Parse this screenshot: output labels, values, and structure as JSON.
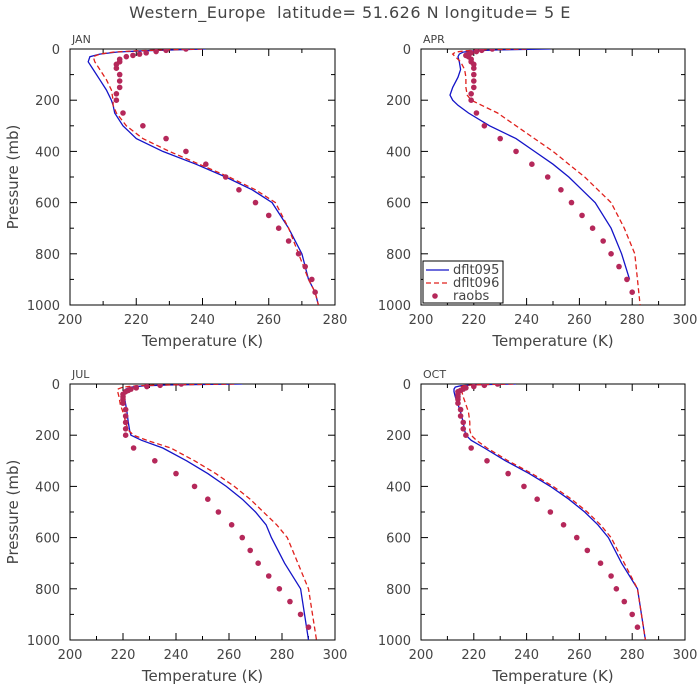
{
  "title": "Western_Europe  latitude= 51.626 N longitude= 5 E",
  "colors": {
    "dflt095": "#1414c8",
    "dflt096": "#e0201c",
    "raobs": "#b5285a"
  },
  "chart_data": [
    {
      "type": "line",
      "panel_label": "JAN",
      "xlabel": "Temperature (K)",
      "ylabel": "Pressure (mb)",
      "xlim": [
        200,
        280
      ],
      "ylim": [
        1000,
        0
      ],
      "xticks": [
        "200",
        "220",
        "240",
        "260",
        "280"
      ],
      "yticks": [
        "0",
        "200",
        "400",
        "600",
        "800",
        "1000"
      ],
      "series": [
        {
          "name": "dflt095",
          "style": "solid",
          "x": [
            241,
            232,
            222,
            214,
            209,
            206,
            205.5,
            207,
            209,
            211,
            212.5,
            213,
            213.5,
            216,
            220,
            228,
            238,
            247,
            255,
            261,
            266,
            270,
            272,
            274,
            275
          ],
          "y": [
            0,
            3,
            7,
            12,
            20,
            30,
            50,
            80,
            120,
            160,
            200,
            220,
            250,
            300,
            350,
            400,
            450,
            500,
            550,
            600,
            700,
            800,
            900,
            950,
            1000
          ]
        },
        {
          "name": "dflt096",
          "style": "dashed",
          "x": [
            240,
            230,
            220,
            213,
            209,
            207,
            207.5,
            209,
            211,
            212.5,
            213,
            213,
            214,
            217,
            222,
            230,
            239,
            248,
            256,
            262,
            266,
            269,
            272,
            274,
            275
          ],
          "y": [
            0,
            3,
            7,
            12,
            20,
            30,
            50,
            80,
            120,
            160,
            200,
            220,
            250,
            300,
            350,
            400,
            450,
            500,
            550,
            600,
            700,
            800,
            900,
            950,
            1000
          ]
        }
      ],
      "raobs": {
        "x": [
          235,
          229,
          226,
          223,
          221,
          219,
          217,
          215,
          215,
          214,
          214,
          215,
          215,
          215,
          214,
          214,
          216,
          222,
          229,
          235,
          241,
          247,
          251,
          256,
          260,
          263,
          266,
          269,
          271,
          273,
          274
        ],
        "y": [
          0,
          5,
          10,
          15,
          20,
          25,
          30,
          40,
          50,
          60,
          75,
          100,
          125,
          150,
          175,
          200,
          250,
          300,
          350,
          400,
          450,
          500,
          550,
          600,
          650,
          700,
          750,
          800,
          850,
          900,
          950
        ]
      },
      "legend": false
    },
    {
      "type": "line",
      "panel_label": "APR",
      "xlabel": "Temperature (K)",
      "ylabel": "",
      "xlim": [
        200,
        300
      ],
      "ylim": [
        1000,
        0
      ],
      "xticks": [
        "200",
        "220",
        "240",
        "260",
        "280",
        "300"
      ],
      "yticks": [
        "0",
        "200",
        "400",
        "600",
        "800",
        "1000"
      ],
      "series": [
        {
          "name": "dflt095",
          "style": "solid",
          "x": [
            249,
            238,
            228,
            220,
            216,
            214.5,
            214,
            214.5,
            215,
            214,
            212,
            211,
            212,
            214,
            218,
            226,
            236,
            243,
            250,
            256,
            261,
            266,
            272,
            276,
            279
          ],
          "y": [
            0,
            2,
            4,
            7,
            12,
            20,
            30,
            50,
            80,
            110,
            150,
            180,
            200,
            220,
            250,
            300,
            350,
            400,
            450,
            500,
            550,
            600,
            700,
            800,
            900
          ]
        },
        {
          "name": "dflt096",
          "style": "dashed",
          "x": [
            240,
            230,
            222,
            217,
            213,
            212,
            213,
            215,
            216.5,
            217,
            217,
            217.5,
            219,
            223,
            229,
            236,
            243,
            250,
            256,
            262,
            267,
            272,
            277,
            281,
            283
          ],
          "y": [
            0,
            2,
            4,
            7,
            12,
            20,
            30,
            50,
            80,
            110,
            150,
            180,
            200,
            220,
            250,
            300,
            350,
            400,
            450,
            500,
            550,
            600,
            700,
            800,
            1000
          ]
        }
      ],
      "raobs": {
        "x": [
          227,
          223,
          221,
          219,
          218,
          217,
          218,
          219,
          219,
          220,
          220,
          220,
          220,
          220,
          219,
          219,
          221,
          224,
          230,
          236,
          242,
          248,
          253,
          257,
          261,
          265,
          269,
          272,
          275,
          278,
          280
        ],
        "y": [
          0,
          5,
          10,
          15,
          20,
          25,
          30,
          40,
          50,
          60,
          75,
          100,
          125,
          150,
          175,
          200,
          250,
          300,
          350,
          400,
          450,
          500,
          550,
          600,
          650,
          700,
          750,
          800,
          850,
          900,
          950
        ]
      },
      "legend": true,
      "legend_position": "bottom-left",
      "legend_entries": [
        "dflt095",
        "dflt096",
        "raobs"
      ]
    },
    {
      "type": "line",
      "panel_label": "JUL",
      "xlabel": "Temperature (K)",
      "ylabel": "Pressure (mb)",
      "xlim": [
        200,
        300
      ],
      "ylim": [
        1000,
        0
      ],
      "xticks": [
        "200",
        "220",
        "240",
        "260",
        "280",
        "300"
      ],
      "yticks": [
        "0",
        "200",
        "400",
        "600",
        "800",
        "1000"
      ],
      "series": [
        {
          "name": "dflt095",
          "style": "solid",
          "x": [
            265,
            250,
            237,
            228,
            223,
            221,
            220.5,
            220.5,
            221,
            221.5,
            222,
            222.5,
            223,
            227,
            235,
            244,
            252,
            259,
            265,
            270,
            274,
            276,
            281,
            287,
            290
          ],
          "y": [
            0,
            2,
            4,
            7,
            12,
            20,
            30,
            50,
            80,
            110,
            150,
            180,
            200,
            220,
            250,
            300,
            350,
            400,
            450,
            500,
            550,
            600,
            700,
            800,
            1000
          ]
        },
        {
          "name": "dflt096",
          "style": "dashed",
          "x": [
            262,
            247,
            234,
            225,
            220,
            218,
            218,
            218.5,
            219,
            220,
            221,
            222,
            224,
            229,
            238,
            247,
            255,
            262,
            268,
            273,
            278,
            282,
            286,
            290,
            293
          ],
          "y": [
            0,
            2,
            4,
            7,
            12,
            20,
            30,
            50,
            80,
            110,
            150,
            180,
            200,
            220,
            250,
            300,
            350,
            400,
            450,
            500,
            550,
            600,
            700,
            800,
            1000
          ]
        }
      ],
      "raobs": {
        "x": [
          242,
          234,
          229,
          225,
          223,
          222,
          221,
          220,
          220,
          220,
          220,
          221,
          221,
          221,
          221,
          221,
          224,
          232,
          240,
          247,
          252,
          256,
          261,
          265,
          268,
          271,
          275,
          279,
          283,
          287,
          290
        ],
        "y": [
          0,
          5,
          10,
          15,
          20,
          25,
          30,
          40,
          50,
          60,
          75,
          100,
          125,
          150,
          175,
          200,
          250,
          300,
          350,
          400,
          450,
          500,
          550,
          600,
          650,
          700,
          750,
          800,
          850,
          900,
          950
        ]
      },
      "legend": false
    },
    {
      "type": "line",
      "panel_label": "OCT",
      "xlabel": "Temperature (K)",
      "ylabel": "",
      "xlim": [
        200,
        300
      ],
      "ylim": [
        1000,
        0
      ],
      "xticks": [
        "200",
        "220",
        "240",
        "260",
        "280",
        "300"
      ],
      "yticks": [
        "0",
        "200",
        "400",
        "600",
        "800",
        "1000"
      ],
      "series": [
        {
          "name": "dflt095",
          "style": "solid",
          "x": [
            236,
            226,
            219,
            215,
            213,
            212.5,
            212.5,
            213,
            214,
            215,
            216,
            216.5,
            217,
            219,
            224,
            232,
            241,
            249,
            256,
            262,
            267,
            271,
            276,
            282,
            285
          ],
          "y": [
            0,
            2,
            4,
            7,
            12,
            20,
            30,
            50,
            80,
            110,
            150,
            180,
            200,
            220,
            250,
            300,
            350,
            400,
            450,
            500,
            550,
            600,
            700,
            800,
            1000
          ]
        },
        {
          "name": "dflt096",
          "style": "dashed",
          "x": [
            235,
            225,
            219,
            216,
            215,
            215,
            215.5,
            216,
            217,
            218,
            218.5,
            218.5,
            219,
            221,
            225,
            233,
            242,
            250,
            257,
            263,
            268,
            272,
            277,
            282,
            285
          ],
          "y": [
            0,
            2,
            4,
            7,
            12,
            20,
            30,
            50,
            80,
            110,
            150,
            180,
            200,
            220,
            250,
            300,
            350,
            400,
            450,
            500,
            550,
            600,
            700,
            800,
            1000
          ]
        }
      ],
      "raobs": {
        "x": [
          229,
          224,
          220,
          217,
          216,
          215,
          214,
          214,
          214,
          214,
          214,
          215,
          215,
          216,
          216,
          217,
          219,
          225,
          233,
          239,
          244,
          249,
          254,
          259,
          263,
          268,
          272,
          274,
          277,
          280,
          282
        ],
        "y": [
          0,
          5,
          10,
          15,
          20,
          25,
          30,
          40,
          50,
          60,
          75,
          100,
          125,
          150,
          175,
          200,
          250,
          300,
          350,
          400,
          450,
          500,
          550,
          600,
          650,
          700,
          750,
          800,
          850,
          900,
          950
        ]
      },
      "legend": false
    }
  ]
}
